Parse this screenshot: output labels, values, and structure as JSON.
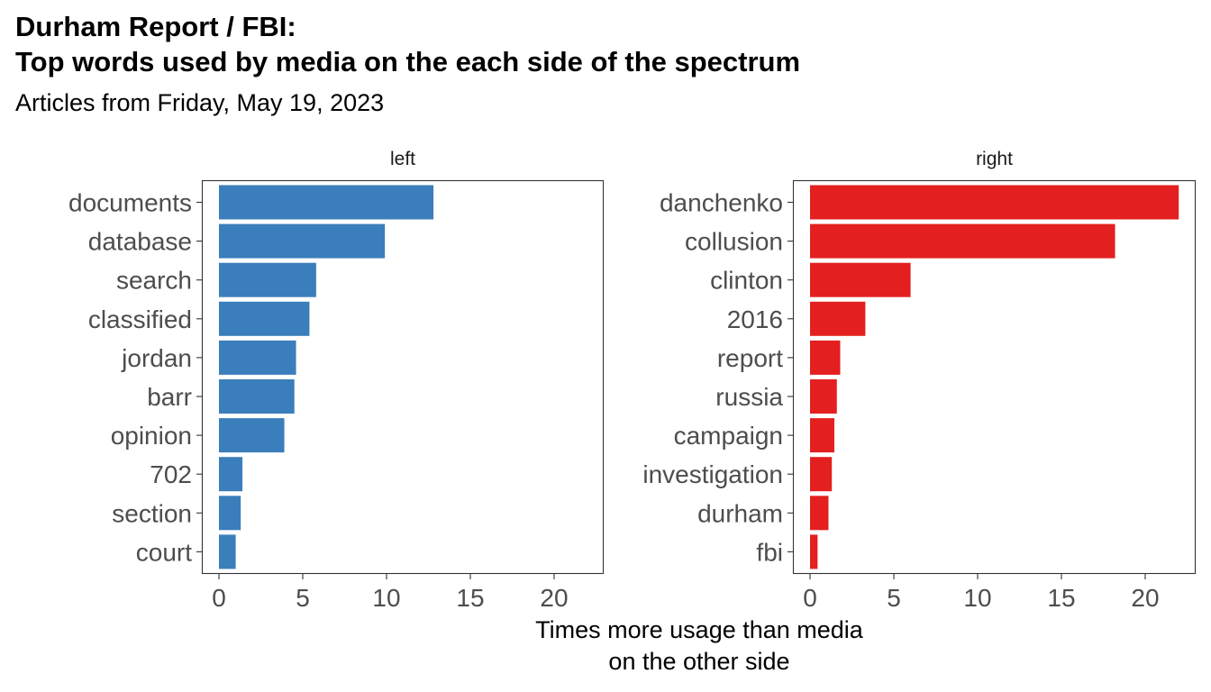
{
  "title_lines": [
    "Durham Report / FBI:",
    "Top words used by media on the each side of the spectrum"
  ],
  "subtitle": "Articles from Friday, May 19, 2023",
  "xlabel_lines": [
    "Times more usage than media",
    "on the other side"
  ],
  "chart_data": {
    "type": "bar",
    "orientation": "horizontal",
    "title": "Durham Report / FBI: Top words used by media on the each side of the spectrum",
    "subtitle": "Articles from Friday, May 19, 2023",
    "xlabel": "Times more usage than media on the other side",
    "ylabel": "",
    "xlim": [
      0,
      22
    ],
    "xticks": [
      0,
      5,
      10,
      15,
      20
    ],
    "grid": false,
    "legend": "none",
    "panels": [
      {
        "name": "left",
        "color": "#3A7EBB",
        "categories": [
          "documents",
          "database",
          "search",
          "classified",
          "jordan",
          "barr",
          "opinion",
          "702",
          "section",
          "court"
        ],
        "values": [
          12.8,
          9.9,
          5.8,
          5.4,
          4.6,
          4.5,
          3.9,
          1.4,
          1.3,
          1.0
        ]
      },
      {
        "name": "right",
        "color": "#E3201F",
        "categories": [
          "danchenko",
          "collusion",
          "clinton",
          "2016",
          "report",
          "russia",
          "campaign",
          "investigation",
          "durham",
          "fbi"
        ],
        "values": [
          22.0,
          18.2,
          6.0,
          3.3,
          1.8,
          1.6,
          1.45,
          1.3,
          1.1,
          0.45
        ]
      }
    ]
  }
}
